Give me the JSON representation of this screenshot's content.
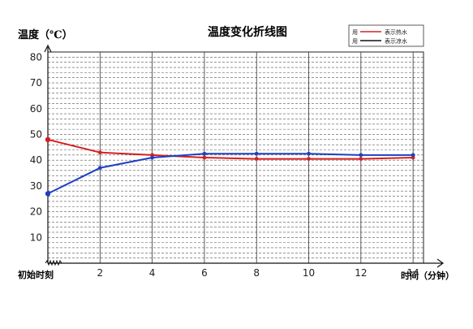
{
  "chart_data": {
    "type": "line",
    "title": "温度变化折线图",
    "ylabel": "温度（℃）",
    "xlabel": "时间（分钟）",
    "x_start_label": "初始时刻",
    "x_ticks": [
      2,
      4,
      6,
      8,
      10,
      12,
      14
    ],
    "y_ticks": [
      10,
      20,
      30,
      40,
      50,
      60,
      70,
      80
    ],
    "xlim": [
      0,
      14.4
    ],
    "ylim": [
      0,
      82
    ],
    "grid": true,
    "legend_position": "top-right",
    "series": [
      {
        "name": "表示热水",
        "legend_prefix": "用",
        "color": "#d42020",
        "x": [
          0,
          2,
          4,
          6,
          8,
          10,
          12,
          14
        ],
        "values": [
          48,
          43,
          42,
          41,
          40.5,
          40.5,
          40.5,
          41
        ]
      },
      {
        "name": "表示凉水",
        "legend_prefix": "用",
        "color": "#1f3fc4",
        "x": [
          0,
          2,
          4,
          6,
          8,
          10,
          12,
          14
        ],
        "values": [
          27,
          37,
          41,
          42.5,
          42.5,
          42.5,
          42,
          42
        ]
      }
    ]
  }
}
